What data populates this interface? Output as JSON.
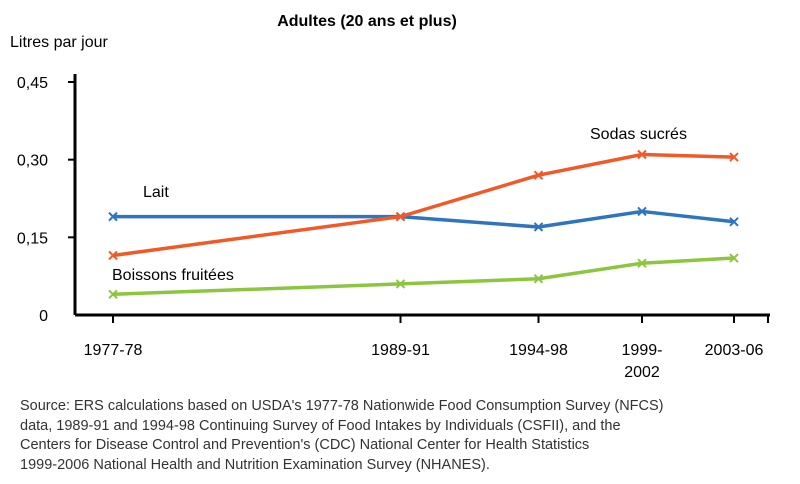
{
  "chart_data": {
    "type": "line",
    "title": "Adultes (20 ans et plus)",
    "ylabel": "Litres par jour",
    "xlabel": "",
    "ylim": [
      0,
      0.45
    ],
    "yticks": [
      0,
      0.15,
      0.3,
      0.45
    ],
    "ytick_labels": [
      "0",
      "0,15",
      "0,30",
      "0,45"
    ],
    "categories": [
      "1977-78",
      "1989-91",
      "1994-98",
      "1999-2002",
      "2003-06"
    ],
    "x": [
      1977.5,
      1990,
      1996,
      2000.5,
      2004.5
    ],
    "x_tick_labels": [
      {
        "lines": [
          "1977-78"
        ]
      },
      {
        "lines": [
          "1989-91"
        ]
      },
      {
        "lines": [
          "1994-98"
        ]
      },
      {
        "lines": [
          "1999-",
          "2002"
        ]
      },
      {
        "lines": [
          "2003-06"
        ]
      }
    ],
    "series": [
      {
        "name": "Lait",
        "color": "#2e74c0",
        "values": [
          0.19,
          0.19,
          0.17,
          0.2,
          0.18
        ]
      },
      {
        "name": "Sodas sucrés",
        "color": "#f05a28",
        "values": [
          0.115,
          0.19,
          0.27,
          0.31,
          0.305
        ]
      },
      {
        "name": "Boissons fruitées",
        "color": "#8cc63f",
        "values": [
          0.04,
          0.06,
          0.07,
          0.1,
          0.11
        ]
      }
    ],
    "grid": false,
    "legend": "inline labels"
  },
  "source": "Source: ERS calculations based on USDA's 1977-78 Nationwide Food Consumption Survey (NFCS)\ndata, 1989-91 and 1994-98 Continuing Survey of Food Intakes by Individuals (CSFII), and the\nCenters for Disease Control and Prevention's (CDC) National Center for Health Statistics\n1999-2006 National Health and Nutrition Examination Survey (NHANES)."
}
